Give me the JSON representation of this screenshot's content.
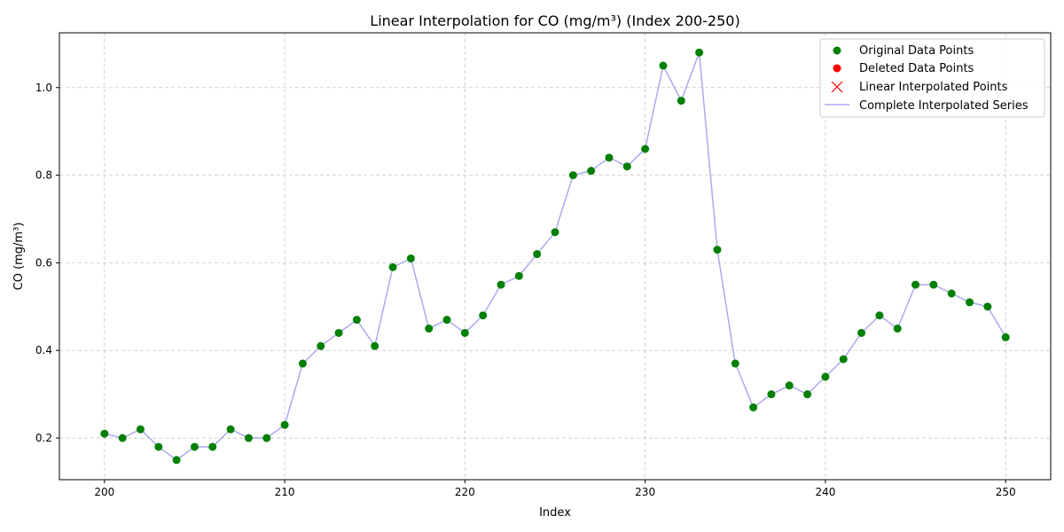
{
  "chart_data": {
    "type": "line",
    "title": "Linear Interpolation for CO (mg/m³) (Index 200-250)",
    "xlabel": "Index",
    "ylabel": "CO (mg/m³)",
    "xlim": [
      197.5,
      252.5
    ],
    "ylim": [
      0.105,
      1.125
    ],
    "xticks": [
      200,
      210,
      220,
      230,
      240,
      250
    ],
    "yticks": [
      0.2,
      0.4,
      0.6,
      0.8,
      1.0
    ],
    "xtick_labels": [
      "200",
      "210",
      "220",
      "230",
      "240",
      "250"
    ],
    "ytick_labels": [
      "0.2",
      "0.4",
      "0.6",
      "0.8",
      "1.0"
    ],
    "grid": true,
    "legend_position": "top-right",
    "legend": [
      {
        "label": "Original Data Points",
        "marker": "circle",
        "color": "#008000"
      },
      {
        "label": "Deleted Data Points",
        "marker": "circle",
        "color": "#ff0000"
      },
      {
        "label": "Linear Interpolated Points",
        "marker": "x",
        "color": "#ff0000"
      },
      {
        "label": "Complete Interpolated Series",
        "marker": "line",
        "color": "#aaaaf0"
      }
    ],
    "x": [
      200,
      201,
      202,
      203,
      204,
      205,
      206,
      207,
      208,
      209,
      210,
      211,
      212,
      213,
      214,
      215,
      216,
      217,
      218,
      219,
      220,
      221,
      222,
      223,
      224,
      225,
      226,
      227,
      228,
      229,
      230,
      231,
      232,
      233,
      234,
      235,
      236,
      237,
      238,
      239,
      240,
      241,
      242,
      243,
      244,
      245,
      246,
      247,
      248,
      249,
      250
    ],
    "series": [
      {
        "name": "Complete Interpolated Series",
        "color": "#aaaaf0",
        "values": [
          0.21,
          0.2,
          0.22,
          0.18,
          0.15,
          0.18,
          0.18,
          0.22,
          0.2,
          0.2,
          0.23,
          0.37,
          0.41,
          0.44,
          0.47,
          0.41,
          0.59,
          0.61,
          0.45,
          0.47,
          0.44,
          0.48,
          0.55,
          0.57,
          0.62,
          0.67,
          0.8,
          0.81,
          0.84,
          0.82,
          0.86,
          1.05,
          0.97,
          1.08,
          0.63,
          0.37,
          0.27,
          0.3,
          0.32,
          0.3,
          0.34,
          0.38,
          0.44,
          0.48,
          0.45,
          0.55,
          0.55,
          0.53,
          0.51,
          0.5,
          0.43
        ]
      },
      {
        "name": "Original Data Points",
        "color": "#008000",
        "values": [
          0.21,
          0.2,
          0.22,
          0.18,
          0.15,
          0.18,
          0.18,
          0.22,
          0.2,
          0.2,
          0.23,
          0.37,
          0.41,
          0.44,
          0.47,
          0.41,
          0.59,
          0.61,
          0.45,
          0.47,
          0.44,
          0.48,
          0.55,
          0.57,
          0.62,
          0.67,
          0.8,
          0.81,
          0.84,
          0.82,
          0.86,
          1.05,
          0.97,
          1.08,
          0.63,
          0.37,
          0.27,
          0.3,
          0.32,
          0.3,
          0.34,
          0.38,
          0.44,
          0.48,
          0.45,
          0.55,
          0.55,
          0.53,
          0.51,
          0.5,
          0.43
        ]
      }
    ]
  }
}
